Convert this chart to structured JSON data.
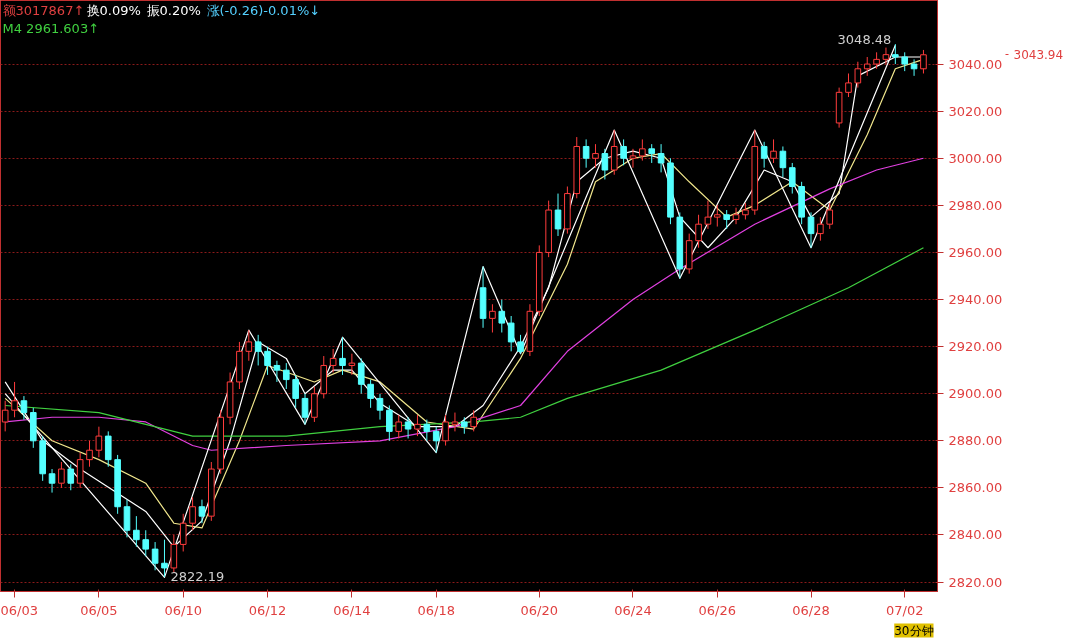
{
  "chart_data": {
    "type": "candlestick",
    "categories": [
      null,
      "06/03",
      null,
      null,
      null,
      null,
      null,
      null,
      null,
      null,
      "06/05",
      null,
      null,
      null,
      null,
      null,
      null,
      null,
      null,
      "06/10",
      null,
      null,
      null,
      null,
      null,
      null,
      null,
      null,
      "06/12",
      null,
      null,
      null,
      null,
      null,
      null,
      null,
      null,
      "06/14",
      null,
      null,
      null,
      null,
      null,
      null,
      null,
      null,
      "06/18",
      null,
      null,
      null,
      null,
      null,
      null,
      null,
      null,
      null,
      null,
      "06/20",
      null,
      null,
      null,
      null,
      null,
      null,
      null,
      null,
      null,
      "06/24",
      null,
      null,
      null,
      null,
      null,
      null,
      null,
      null,
      "06/26",
      null,
      null,
      null,
      null,
      null,
      null,
      null,
      null,
      null,
      "06/28",
      null,
      null,
      null,
      null,
      null,
      null,
      null,
      null,
      null,
      "07/02",
      null,
      null
    ],
    "ohlc": [
      [
        2888,
        2897,
        2884,
        2893
      ],
      [
        2893,
        2905,
        2890,
        2897
      ],
      [
        2897,
        2899,
        2889,
        2892
      ],
      [
        2892,
        2894,
        2877,
        2880
      ],
      [
        2880,
        2882,
        2863,
        2866
      ],
      [
        2866,
        2868,
        2858,
        2862
      ],
      [
        2862,
        2871,
        2860,
        2868
      ],
      [
        2868,
        2870,
        2859,
        2862
      ],
      [
        2862,
        2875,
        2860,
        2872
      ],
      [
        2872,
        2880,
        2869,
        2876
      ],
      [
        2876,
        2886,
        2873,
        2882
      ],
      [
        2882,
        2884,
        2869,
        2872
      ],
      [
        2872,
        2874,
        2849,
        2852
      ],
      [
        2852,
        2855,
        2839,
        2842
      ],
      [
        2842,
        2848,
        2835,
        2838
      ],
      [
        2838,
        2842,
        2831,
        2834
      ],
      [
        2834,
        2837,
        2825,
        2828
      ],
      [
        2828,
        2838,
        2822.19,
        2826
      ],
      [
        2826,
        2840,
        2824,
        2836
      ],
      [
        2836,
        2849,
        2833,
        2845
      ],
      [
        2845,
        2856,
        2842,
        2852
      ],
      [
        2852,
        2855,
        2845,
        2848
      ],
      [
        2848,
        2871,
        2846,
        2868
      ],
      [
        2868,
        2893,
        2866,
        2890
      ],
      [
        2890,
        2909,
        2887,
        2905
      ],
      [
        2905,
        2922,
        2902,
        2918
      ],
      [
        2918,
        2927,
        2914,
        2922
      ],
      [
        2922,
        2925,
        2912,
        2918
      ],
      [
        2918,
        2920,
        2908,
        2912
      ],
      [
        2912,
        2914,
        2905,
        2910
      ],
      [
        2910,
        2913,
        2902,
        2906
      ],
      [
        2906,
        2908,
        2894,
        2898
      ],
      [
        2898,
        2900,
        2887,
        2890
      ],
      [
        2890,
        2903,
        2888,
        2900
      ],
      [
        2900,
        2916,
        2898,
        2912
      ],
      [
        2912,
        2919,
        2909,
        2915
      ],
      [
        2915,
        2924,
        2908,
        2912
      ],
      [
        2912,
        2917,
        2908,
        2913
      ],
      [
        2913,
        2915,
        2900,
        2904
      ],
      [
        2904,
        2906,
        2894,
        2898
      ],
      [
        2898,
        2900,
        2889,
        2893
      ],
      [
        2893,
        2895,
        2880,
        2884
      ],
      [
        2884,
        2891,
        2881,
        2888
      ],
      [
        2888,
        2890,
        2881,
        2885
      ],
      [
        2885,
        2891,
        2882,
        2887
      ],
      [
        2887,
        2889,
        2880,
        2884
      ],
      [
        2884,
        2886,
        2875,
        2880
      ],
      [
        2880,
        2891,
        2878,
        2888
      ],
      [
        2887,
        2892,
        2884,
        2888
      ],
      [
        2888,
        2890,
        2883,
        2886
      ],
      [
        2886,
        2893,
        2884,
        2890
      ],
      [
        2945,
        2954,
        2928,
        2932
      ],
      [
        2932,
        2938,
        2926,
        2935
      ],
      [
        2935,
        2940,
        2926,
        2930
      ],
      [
        2930,
        2933,
        2918,
        2922
      ],
      [
        2922,
        2925,
        2917,
        2918
      ],
      [
        2918,
        2938,
        2916,
        2935
      ],
      [
        2935,
        2963,
        2933,
        2960
      ],
      [
        2960,
        2982,
        2958,
        2978
      ],
      [
        2978,
        2985,
        2967,
        2970
      ],
      [
        2970,
        2988,
        2968,
        2985
      ],
      [
        2985,
        3009,
        2983,
        3005
      ],
      [
        3005,
        3008,
        2996,
        3000
      ],
      [
        3000,
        3006,
        2996,
        3002
      ],
      [
        3002,
        3004,
        2991,
        2995
      ],
      [
        2995,
        3012,
        2993,
        3005
      ],
      [
        3005,
        3008,
        2997,
        3000
      ],
      [
        3000,
        3004,
        2996,
        3001
      ],
      [
        3001,
        3008,
        2999,
        3004
      ],
      [
        3004,
        3006,
        2998,
        3002
      ],
      [
        3002,
        3006,
        2994,
        2998
      ],
      [
        2998,
        3000,
        2972,
        2975
      ],
      [
        2975,
        2977,
        2949,
        2953
      ],
      [
        2953,
        2968,
        2951,
        2965
      ],
      [
        2965,
        2976,
        2962,
        2972
      ],
      [
        2972,
        2982,
        2970,
        2975
      ],
      [
        2975,
        2980,
        2971,
        2976
      ],
      [
        2976,
        2978,
        2970,
        2974
      ],
      [
        2974,
        2979,
        2972,
        2976
      ],
      [
        2976,
        2981,
        2974,
        2978
      ],
      [
        2978,
        3012,
        2976,
        3005
      ],
      [
        3005,
        3007,
        2996,
        3000
      ],
      [
        3000,
        3008,
        2998,
        3003
      ],
      [
        3003,
        3005,
        2992,
        2996
      ],
      [
        2996,
        2998,
        2985,
        2988
      ],
      [
        2988,
        2990,
        2972,
        2975
      ],
      [
        2975,
        2977,
        2962,
        2968
      ],
      [
        2968,
        2975,
        2965,
        2972
      ],
      [
        2972,
        2981,
        2970,
        2978
      ],
      [
        3015,
        3030,
        3013,
        3028
      ],
      [
        3028,
        3036,
        3026,
        3032
      ],
      [
        3032,
        3041,
        3030,
        3038
      ],
      [
        3038,
        3043,
        3035,
        3040
      ],
      [
        3040,
        3045,
        3038,
        3042
      ],
      [
        3042,
        3047,
        3040,
        3044
      ],
      [
        3044,
        3048.48,
        3040,
        3043
      ],
      [
        3043,
        3045,
        3037,
        3040
      ],
      [
        3040,
        3042,
        3035,
        3038
      ],
      [
        3038,
        3046,
        3036,
        3043.94
      ]
    ],
    "series": [
      {
        "type": "line",
        "color": "#ffffff",
        "values": [
          2905,
          null,
          null,
          null,
          2880,
          null,
          null,
          null,
          2868,
          null,
          null,
          null,
          null,
          null,
          null,
          2850,
          null,
          null,
          2835,
          null,
          null,
          2846,
          null,
          null,
          2880,
          null,
          null,
          2922,
          null,
          null,
          2915,
          null,
          2900,
          null,
          null,
          2910,
          null,
          2910,
          null,
          null,
          2896,
          null,
          null,
          null,
          2886,
          null,
          null,
          null,
          2886,
          null,
          null,
          2895,
          null,
          null,
          null,
          2920,
          null,
          null,
          2945,
          null,
          null,
          2990,
          null,
          null,
          3000,
          null,
          null,
          3003,
          null,
          null,
          3000,
          null,
          2975,
          null,
          null,
          2962,
          null,
          null,
          2975,
          null,
          null,
          2995,
          null,
          null,
          2990,
          null,
          2975,
          null,
          null,
          2985,
          null,
          3035,
          null,
          null,
          null,
          3043,
          null,
          null,
          3043
        ]
      },
      {
        "type": "line",
        "color": "#f0e68c",
        "values": [
          2898,
          null,
          null,
          null,
          null,
          2880,
          null,
          null,
          null,
          null,
          2872,
          null,
          null,
          null,
          null,
          2862,
          null,
          null,
          2845,
          null,
          null,
          2843,
          null,
          null,
          null,
          2880,
          null,
          null,
          2912,
          null,
          null,
          null,
          null,
          2905,
          null,
          null,
          2910,
          null,
          null,
          null,
          2905,
          null,
          null,
          null,
          null,
          2888,
          null,
          null,
          null,
          null,
          2885,
          null,
          null,
          null,
          null,
          2915,
          null,
          null,
          null,
          null,
          2955,
          null,
          null,
          2990,
          null,
          null,
          null,
          3000,
          null,
          null,
          3002,
          null,
          null,
          2990,
          null,
          null,
          null,
          2975,
          null,
          null,
          2980,
          null,
          null,
          null,
          2990,
          null,
          null,
          null,
          2978,
          null,
          null,
          null,
          3010,
          null,
          null,
          3038,
          null,
          null,
          3042
        ]
      },
      {
        "type": "line",
        "color": "#e040e0",
        "values": [
          2888,
          null,
          null,
          null,
          null,
          2890,
          null,
          null,
          null,
          null,
          2890,
          null,
          null,
          null,
          null,
          2888,
          null,
          null,
          null,
          null,
          2878,
          null,
          2876,
          null,
          null,
          null,
          null,
          null,
          null,
          null,
          2878,
          null,
          null,
          null,
          null,
          null,
          null,
          null,
          null,
          null,
          2880,
          null,
          null,
          null,
          null,
          null,
          null,
          null,
          2886,
          null,
          null,
          null,
          null,
          null,
          null,
          2895,
          null,
          null,
          null,
          null,
          2918,
          null,
          null,
          null,
          null,
          null,
          null,
          2940,
          null,
          null,
          null,
          null,
          2953,
          null,
          null,
          null,
          null,
          null,
          null,
          null,
          2972,
          null,
          null,
          null,
          null,
          null,
          null,
          null,
          2987,
          null,
          null,
          null,
          null,
          2995,
          null,
          null,
          null,
          null,
          3000
        ]
      },
      {
        "type": "line",
        "color": "#40d040",
        "values": [
          2895,
          null,
          null,
          null,
          null,
          null,
          null,
          null,
          null,
          null,
          2892,
          null,
          null,
          null,
          null,
          null,
          null,
          null,
          null,
          null,
          2882,
          null,
          null,
          null,
          null,
          null,
          null,
          null,
          null,
          null,
          2882,
          null,
          null,
          null,
          null,
          null,
          null,
          null,
          null,
          null,
          2886,
          null,
          null,
          null,
          null,
          null,
          null,
          null,
          null,
          null,
          2888,
          null,
          null,
          null,
          null,
          2890,
          null,
          null,
          null,
          null,
          2898,
          null,
          null,
          null,
          null,
          null,
          null,
          null,
          null,
          null,
          2910,
          null,
          null,
          null,
          null,
          null,
          null,
          null,
          null,
          null,
          2927,
          null,
          null,
          null,
          null,
          null,
          null,
          null,
          null,
          null,
          2945,
          null,
          null,
          null,
          null,
          null,
          null,
          null,
          2962
        ]
      },
      {
        "type": "line",
        "color": "#ffffff",
        "values": [
          2900,
          null,
          null,
          null,
          null,
          null,
          null,
          null,
          null,
          null,
          null,
          null,
          null,
          null,
          null,
          null,
          null,
          2822,
          null,
          null,
          null,
          null,
          null,
          null,
          null,
          null,
          2927,
          null,
          null,
          null,
          null,
          null,
          2887,
          null,
          null,
          null,
          2924,
          null,
          null,
          null,
          null,
          null,
          null,
          null,
          null,
          null,
          2875,
          null,
          null,
          null,
          null,
          2954,
          null,
          null,
          null,
          2917,
          null,
          null,
          null,
          null,
          null,
          null,
          null,
          null,
          null,
          3012,
          null,
          null,
          null,
          null,
          null,
          null,
          2949,
          null,
          null,
          null,
          null,
          null,
          null,
          null,
          3012,
          null,
          null,
          null,
          null,
          null,
          2962,
          null,
          null,
          null,
          null,
          null,
          null,
          null,
          null,
          3048,
          null,
          null,
          null
        ]
      }
    ],
    "ylim": [
      2816,
      3067
    ],
    "yticks": [
      {
        "value": 2820,
        "label": "2820.00"
      },
      {
        "value": 2840,
        "label": "2840.00"
      },
      {
        "value": 2860,
        "label": "2860.00"
      },
      {
        "value": 2880,
        "label": "2880.00"
      },
      {
        "value": 2900,
        "label": "2900.00"
      },
      {
        "value": 2920,
        "label": "2920.00"
      },
      {
        "value": 2940,
        "label": "2940.00"
      },
      {
        "value": 2960,
        "label": "2960.00"
      },
      {
        "value": 2980,
        "label": "2980.00"
      },
      {
        "value": 3000,
        "label": "3000.00"
      },
      {
        "value": 3020,
        "label": "3020.00"
      },
      {
        "value": 3040,
        "label": "3040.00"
      }
    ],
    "grid": "y",
    "annotations": [
      "额3017867↑",
      "换0.09%",
      "振0.20%",
      "涨(-0.26)-0.01%↓",
      "M4 2961.603↑",
      "3048.48",
      "2822.19",
      "3043.94",
      "30分钟"
    ]
  }
}
